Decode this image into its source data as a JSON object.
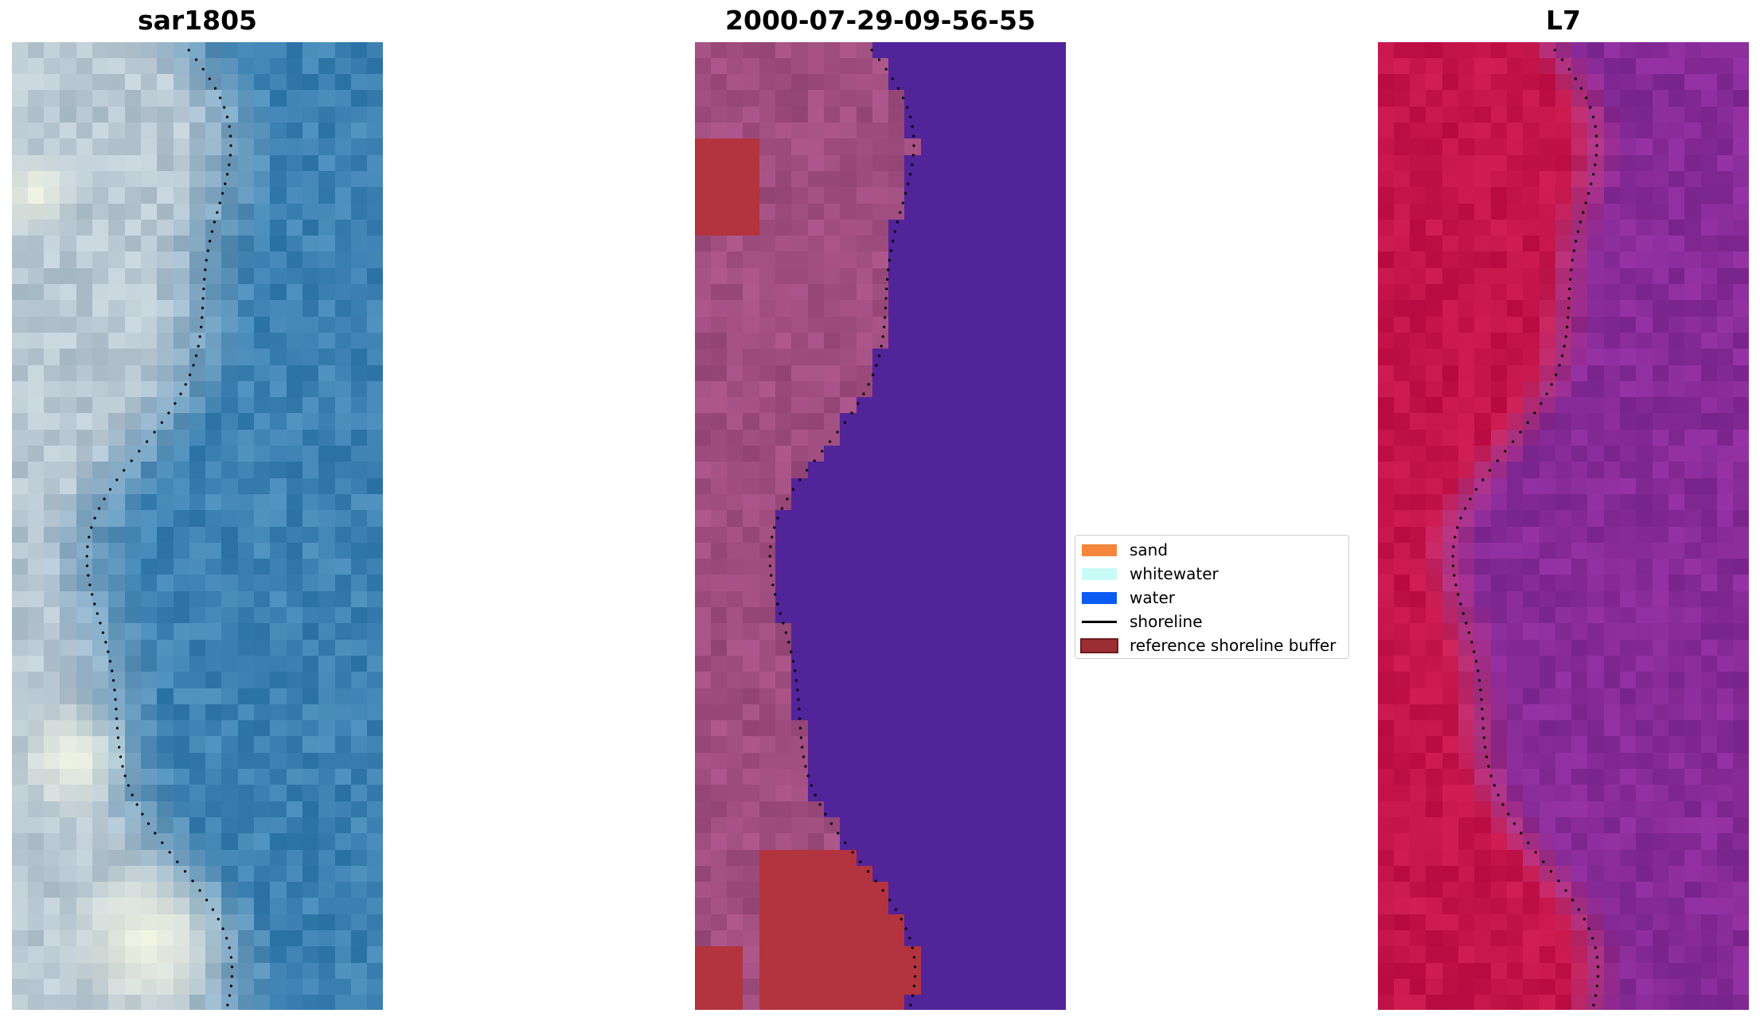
{
  "panels": [
    {
      "title": "sar1805",
      "kind": "rgb"
    },
    {
      "title": "2000-07-29-09-56-55",
      "kind": "classified"
    },
    {
      "title": "L7",
      "kind": "falsecolor"
    }
  ],
  "legend": {
    "items": [
      {
        "label": "sand",
        "type": "patch",
        "color": "#f5873c"
      },
      {
        "label": "whitewater",
        "type": "patch",
        "color": "#c8fbf5"
      },
      {
        "label": "water",
        "type": "patch",
        "color": "#0b5cf2"
      },
      {
        "label": "shoreline",
        "type": "line",
        "color": "#000000"
      },
      {
        "label": "reference shoreline buffer",
        "type": "patch",
        "color": "#9b2d34",
        "edge": "#6e1c20"
      }
    ]
  },
  "colors": {
    "rgb_land": "#b9c8d2",
    "rgb_water": "#3d82b2",
    "rgb_whitewater": "#f4f6e4",
    "classified_land": "#a04e80",
    "classified_water": "#52249a",
    "classified_buffer": "#b3343e",
    "falsecolor_land": "#c4144a",
    "falsecolor_water": "#872b98",
    "shoreline": "#000000"
  }
}
